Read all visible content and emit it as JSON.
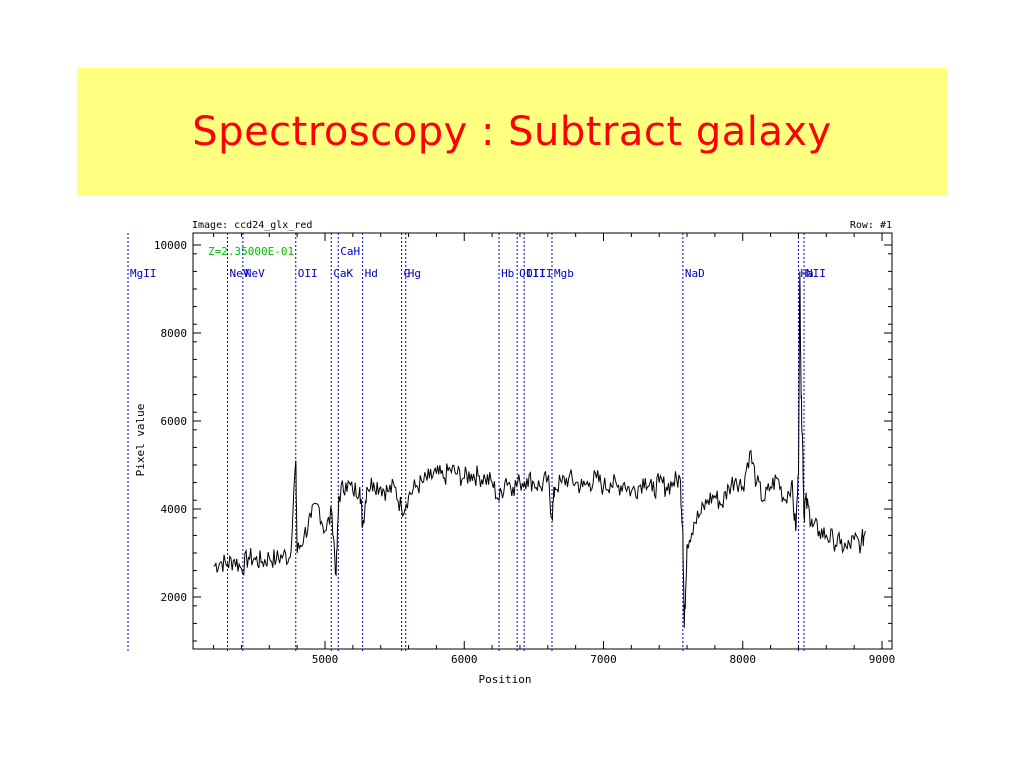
{
  "slide": {
    "title": "Spectroscopy : Subtract galaxy"
  },
  "colors": {
    "banner": "#ffff80",
    "title": "#ff0000",
    "line_markers": "#0000c0",
    "redshift_label": "#00c000",
    "spectrum": "#000000"
  },
  "chart_data": {
    "type": "line",
    "image_label": "Image:  ccd24_glx_red",
    "row_label": "Row: #1",
    "redshift_label": "Z=2.35000E-01",
    "xlabel": "Position",
    "ylabel": "Pixel value",
    "xlim": [
      4000,
      9000
    ],
    "ylim": [
      800,
      10300
    ],
    "x_ticks": [
      5000,
      6000,
      7000,
      8000,
      9000
    ],
    "y_ticks": [
      2000,
      4000,
      6000,
      8000,
      10000
    ],
    "grid": false,
    "line_markers": [
      {
        "label": "MgII",
        "x": 3460,
        "row": 2
      },
      {
        "label": "NeV",
        "x": 4300,
        "row": 2
      },
      {
        "label": "NeV",
        "x": 4410,
        "row": 2
      },
      {
        "label": "OII",
        "x": 4790,
        "row": 2
      },
      {
        "label": "CaK",
        "x": 5045,
        "row": 2
      },
      {
        "label": "CaH",
        "x": 5095,
        "row": 1
      },
      {
        "label": "Hd",
        "x": 5270,
        "row": 2
      },
      {
        "label": "G",
        "x": 5550,
        "row": 2
      },
      {
        "label": "Hg",
        "x": 5580,
        "row": 2
      },
      {
        "label": "Hb",
        "x": 6250,
        "row": 2
      },
      {
        "label": "OIII",
        "x": 6380,
        "row": 2
      },
      {
        "label": "OIII",
        "x": 6430,
        "row": 2
      },
      {
        "label": "Mgb",
        "x": 6630,
        "row": 2
      },
      {
        "label": "NaD",
        "x": 7570,
        "row": 2
      },
      {
        "label": "Ha",
        "x": 8400,
        "row": 2
      },
      {
        "label": "NII",
        "x": 8440,
        "row": 2
      }
    ],
    "series": [
      {
        "x": [
          4200,
          4250,
          4300,
          4350,
          4400,
          4450,
          4500,
          4550,
          4600,
          4650,
          4700,
          4750,
          4790,
          4800,
          4850,
          4900,
          4950,
          5000,
          5050,
          5080,
          5100,
          5150,
          5200,
          5250,
          5270,
          5300,
          5350,
          5400,
          5450,
          5500,
          5550,
          5600,
          5650,
          5700,
          5750,
          5800,
          5850,
          5900,
          5950,
          6000,
          6050,
          6100,
          6150,
          6200,
          6250,
          6300,
          6350,
          6400,
          6450,
          6500,
          6550,
          6600,
          6630,
          6650,
          6700,
          6750,
          6800,
          6850,
          6900,
          6950,
          7000,
          7050,
          7100,
          7150,
          7200,
          7250,
          7300,
          7350,
          7400,
          7450,
          7500,
          7550,
          7570,
          7580,
          7600,
          7650,
          7700,
          7750,
          7800,
          7850,
          7900,
          7950,
          8000,
          8050,
          8100,
          8150,
          8200,
          8250,
          8300,
          8350,
          8380,
          8400,
          8410,
          8420,
          8430,
          8440,
          8450,
          8480,
          8500,
          8550,
          8600,
          8650,
          8700,
          8750,
          8800,
          8850,
          8880
        ],
        "y": [
          2700,
          2800,
          2750,
          2850,
          2650,
          2900,
          2850,
          2800,
          2900,
          2850,
          2950,
          2900,
          5100,
          3000,
          3400,
          3800,
          4100,
          3500,
          3900,
          2500,
          4300,
          4600,
          4400,
          4500,
          3600,
          4500,
          4600,
          4500,
          4400,
          4500,
          4000,
          4300,
          4500,
          4600,
          4700,
          4800,
          4700,
          4900,
          4800,
          4700,
          4800,
          4750,
          4700,
          4600,
          4200,
          4700,
          4500,
          4600,
          4700,
          4600,
          4500,
          4700,
          3800,
          4500,
          4600,
          4700,
          4600,
          4500,
          4600,
          4700,
          4500,
          4600,
          4500,
          4600,
          4400,
          4500,
          4700,
          4400,
          4600,
          4500,
          4600,
          4700,
          3500,
          1300,
          3200,
          3700,
          3900,
          4200,
          4300,
          4100,
          4500,
          4700,
          4500,
          5300,
          4600,
          4200,
          4500,
          4700,
          4200,
          4600,
          3500,
          4800,
          9400,
          6500,
          5500,
          3800,
          4200,
          3900,
          3600,
          3500,
          3400,
          3300,
          3200,
          3100,
          3300,
          3200,
          3500
        ]
      }
    ]
  }
}
